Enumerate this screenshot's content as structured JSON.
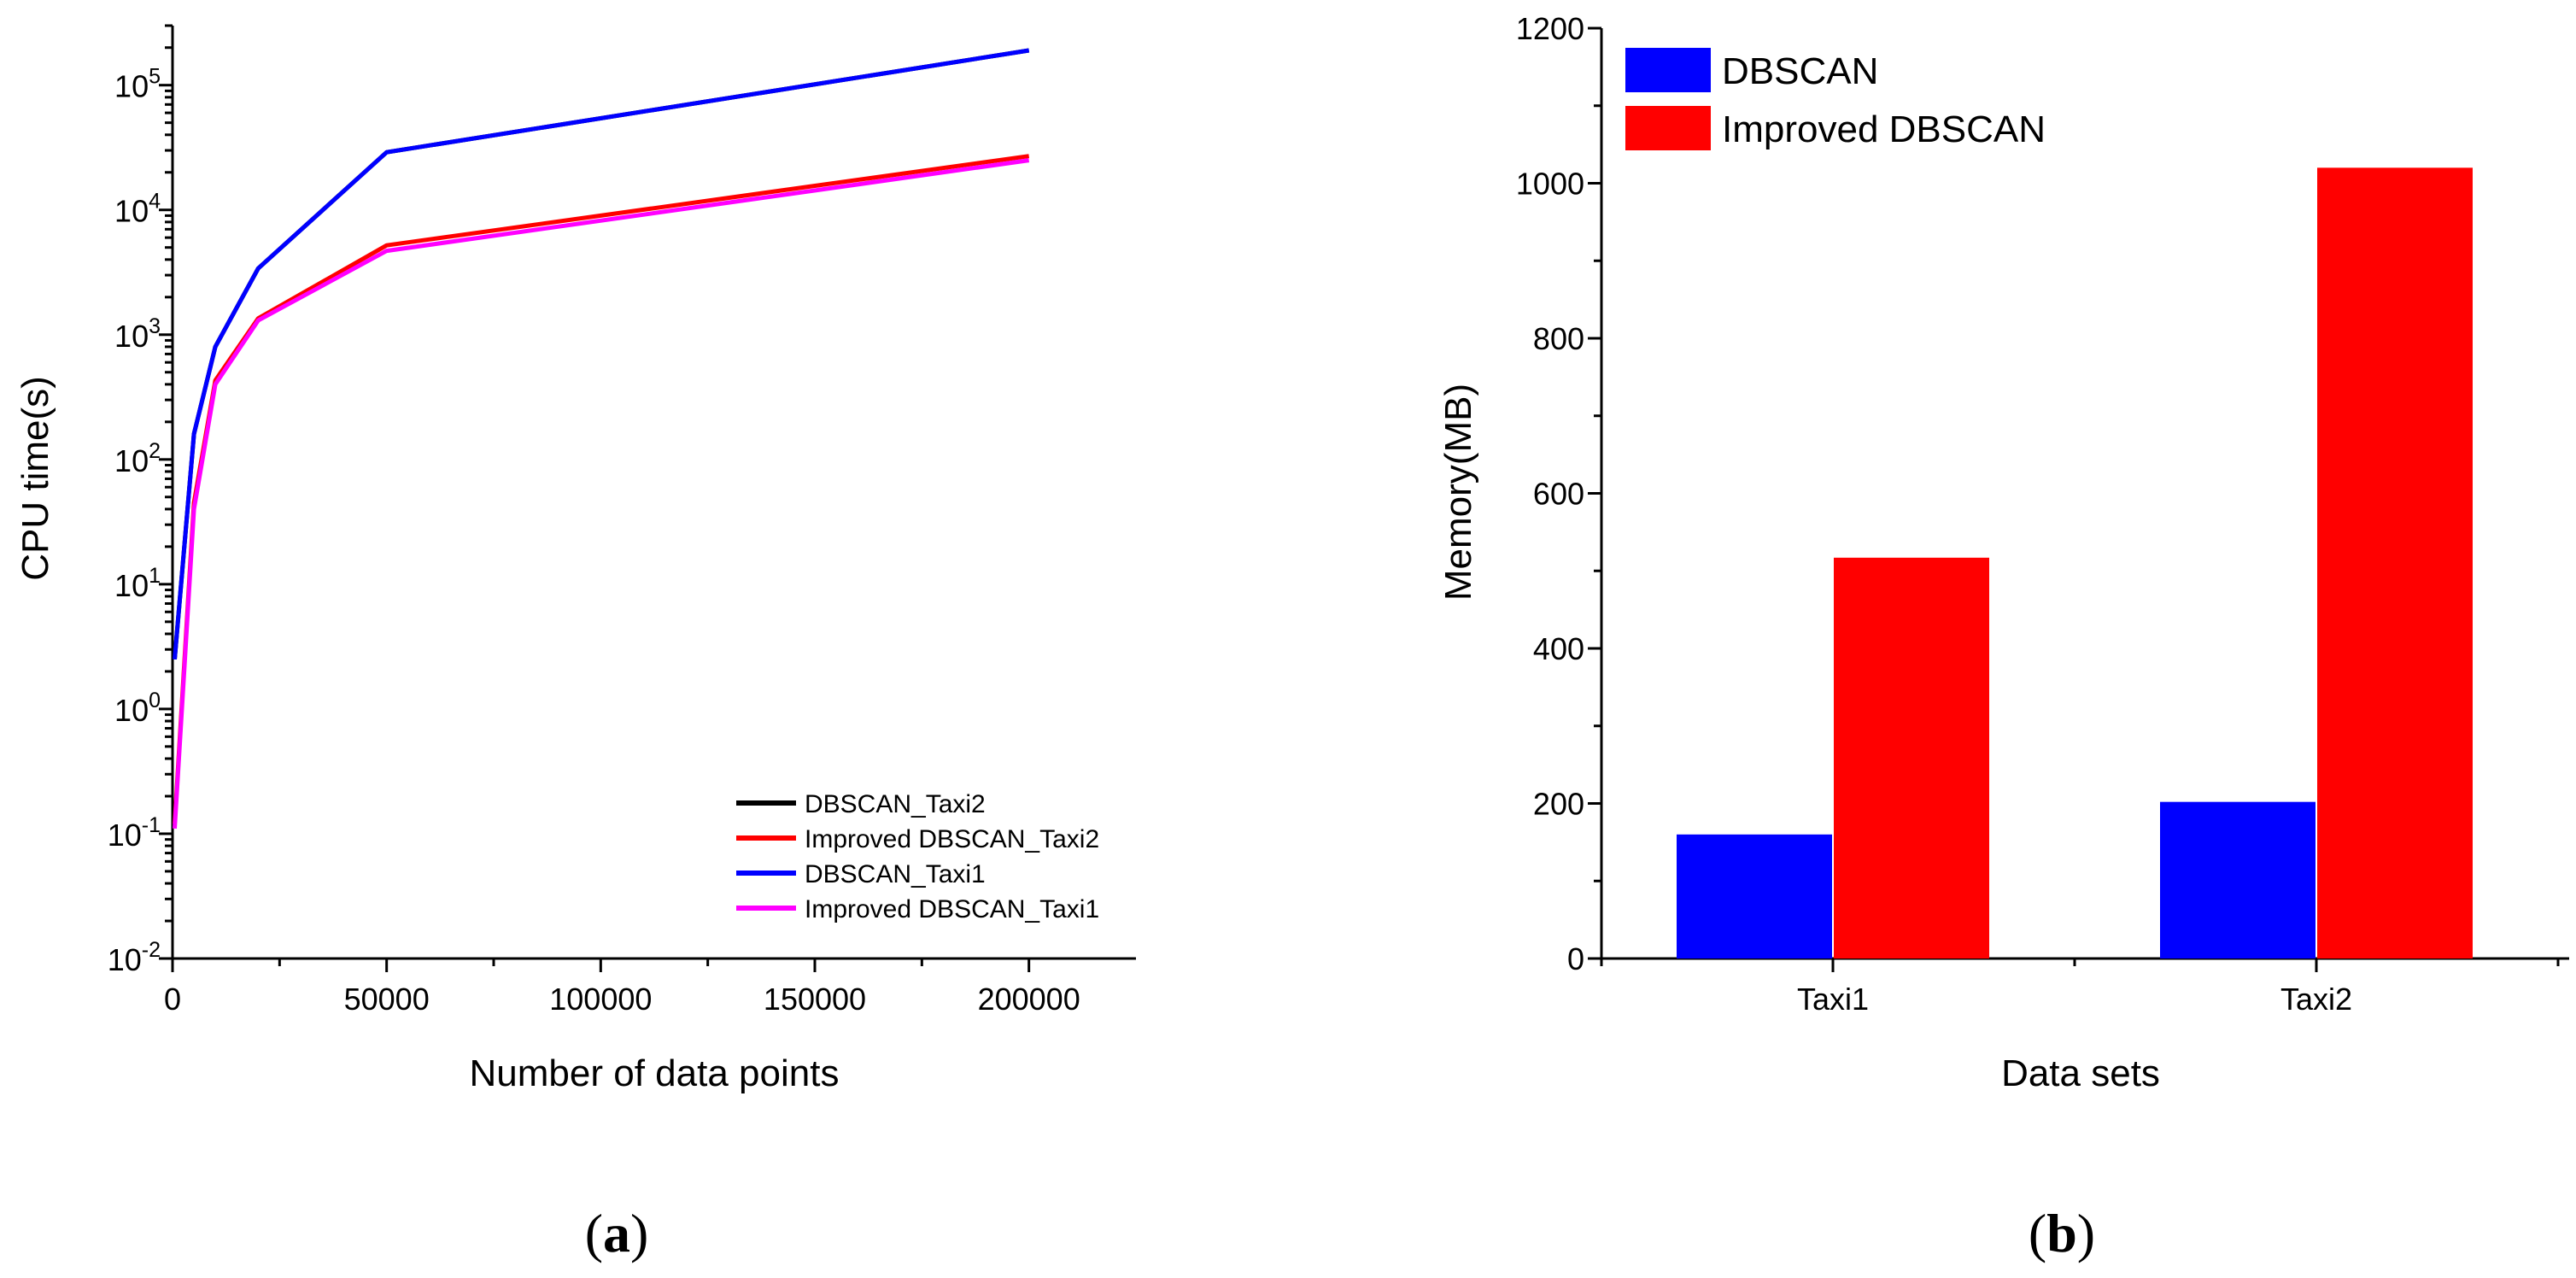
{
  "chart_data": [
    {
      "type": "line",
      "panel_label_open": "(",
      "panel_letter": "a",
      "panel_label_close": ")",
      "xlabel": "Number of data points",
      "ylabel": "CPU time(s)",
      "xlim": [
        0,
        225000
      ],
      "ylim": [
        0.01,
        300000
      ],
      "yscale": "log",
      "x_ticks": [
        0,
        50000,
        100000,
        150000,
        200000
      ],
      "x_tick_labels": [
        "0",
        "50000",
        "100000",
        "150000",
        "200000"
      ],
      "y_ticks": [
        {
          "value": 0.01,
          "base": "10",
          "exp": "-2"
        },
        {
          "value": 0.1,
          "base": "10",
          "exp": "-1"
        },
        {
          "value": 1,
          "base": "10",
          "exp": "0"
        },
        {
          "value": 10,
          "base": "10",
          "exp": "1"
        },
        {
          "value": 100,
          "base": "10",
          "exp": "2"
        },
        {
          "value": 1000,
          "base": "10",
          "exp": "3"
        },
        {
          "value": 10000,
          "base": "10",
          "exp": "4"
        },
        {
          "value": 100000,
          "base": "10",
          "exp": "5"
        }
      ],
      "legend_position": "bottom-right",
      "series": [
        {
          "name": "DBSCAN_Taxi2",
          "color": "#000000",
          "x": [
            500,
            5000,
            10000,
            20000,
            50000,
            200000
          ],
          "y": [
            2.5,
            160,
            800,
            3400,
            29000,
            190000
          ]
        },
        {
          "name": "Improved DBSCAN_Taxi2",
          "color": "#ff0000",
          "x": [
            500,
            5000,
            10000,
            20000,
            50000,
            200000
          ],
          "y": [
            0.12,
            45,
            430,
            1350,
            5200,
            27000
          ]
        },
        {
          "name": "DBSCAN_Taxi1",
          "color": "#0000ff",
          "x": [
            500,
            5000,
            10000,
            20000,
            50000,
            200000
          ],
          "y": [
            2.5,
            160,
            800,
            3400,
            29000,
            190000
          ]
        },
        {
          "name": "Improved DBSCAN_Taxi1",
          "color": "#ff00ff",
          "x": [
            500,
            5000,
            10000,
            20000,
            50000,
            200000
          ],
          "y": [
            0.11,
            40,
            400,
            1300,
            4700,
            25000
          ]
        }
      ]
    },
    {
      "type": "bar",
      "panel_label_open": "(",
      "panel_letter": "b",
      "panel_label_close": ")",
      "xlabel": "Data sets",
      "ylabel": "Memory(MB)",
      "categories": [
        "Taxi1",
        "Taxi2"
      ],
      "ylim": [
        0,
        1200
      ],
      "y_ticks": [
        0,
        200,
        400,
        600,
        800,
        1000,
        1200
      ],
      "legend_position": "top-left",
      "series": [
        {
          "name": "DBSCAN",
          "color": "#0000ff",
          "values": [
            160,
            202
          ]
        },
        {
          "name": "Improved DBSCAN",
          "color": "#ff0000",
          "values": [
            517,
            1020
          ]
        }
      ]
    }
  ]
}
